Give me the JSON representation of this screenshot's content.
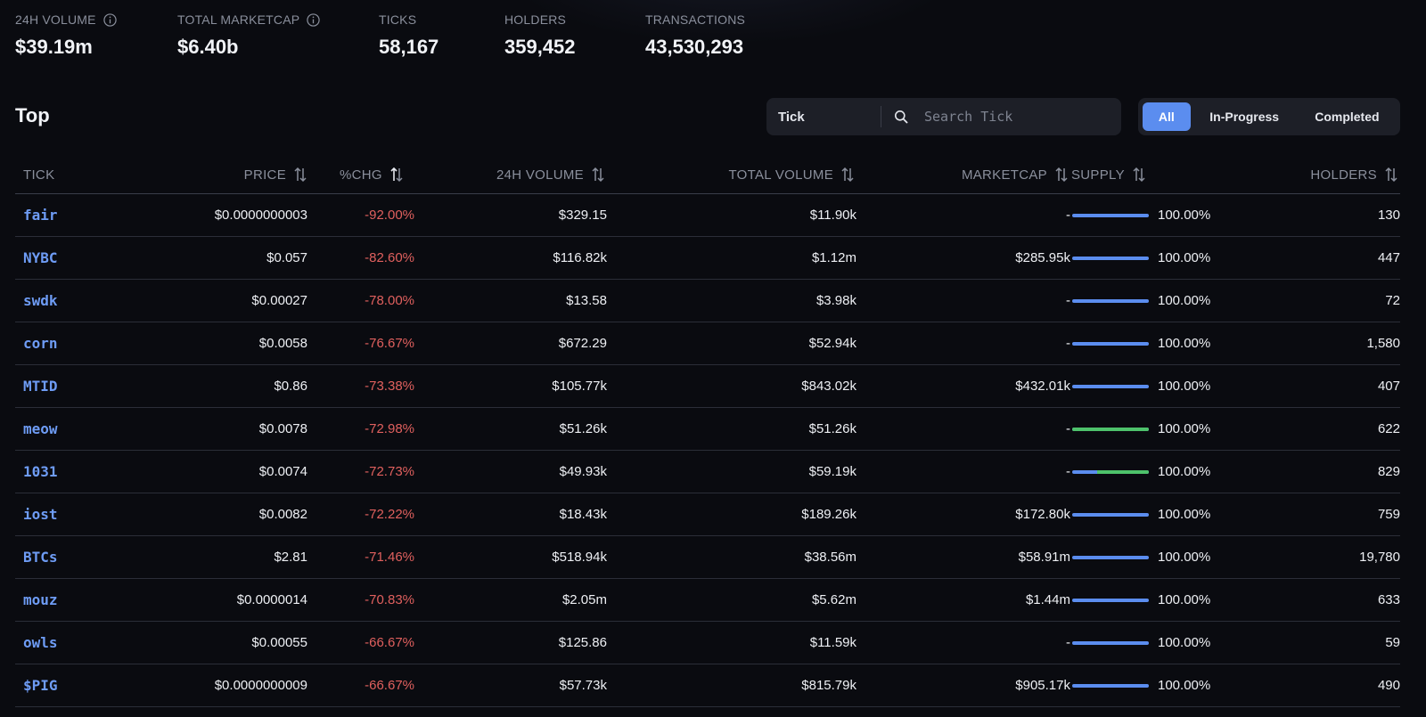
{
  "stats": [
    {
      "label": "24H VOLUME",
      "value": "$39.19m",
      "info": true
    },
    {
      "label": "TOTAL MARKETCAP",
      "value": "$6.40b",
      "info": true
    },
    {
      "label": "TICKS",
      "value": "58,167",
      "info": false
    },
    {
      "label": "HOLDERS",
      "value": "359,452",
      "info": false
    },
    {
      "label": "TRANSACTIONS",
      "value": "43,530,293",
      "info": false
    }
  ],
  "section_title": "Top",
  "search": {
    "kind": "Tick",
    "placeholder": "Search Tick",
    "value": ""
  },
  "filters": [
    "All",
    "In-Progress",
    "Completed"
  ],
  "active_filter": "All",
  "columns": [
    "TICK",
    "PRICE",
    "%CHG",
    "24H VOLUME",
    "TOTAL VOLUME",
    "MARKETCAP",
    "SUPPLY",
    "HOLDERS"
  ],
  "colors": {
    "accent": "#5b8def",
    "tick_link": "#6e9cf5",
    "negative": "#e0605e",
    "supply_green": "#4ec26b"
  },
  "rows": [
    {
      "tick": "fair",
      "price": "$0.0000000003",
      "chg": "-92.00%",
      "vol24": "$329.15",
      "total_vol": "$11.90k",
      "mcap": "-",
      "supply": "100.00%",
      "green_fraction": 0,
      "holders": "130"
    },
    {
      "tick": "NYBC",
      "price": "$0.057",
      "chg": "-82.60%",
      "vol24": "$116.82k",
      "total_vol": "$1.12m",
      "mcap": "$285.95k",
      "supply": "100.00%",
      "green_fraction": 0,
      "holders": "447"
    },
    {
      "tick": "swdk",
      "price": "$0.00027",
      "chg": "-78.00%",
      "vol24": "$13.58",
      "total_vol": "$3.98k",
      "mcap": "-",
      "supply": "100.00%",
      "green_fraction": 0,
      "holders": "72"
    },
    {
      "tick": "corn",
      "price": "$0.0058",
      "chg": "-76.67%",
      "vol24": "$672.29",
      "total_vol": "$52.94k",
      "mcap": "-",
      "supply": "100.00%",
      "green_fraction": 0,
      "holders": "1,580"
    },
    {
      "tick": "MTID",
      "price": "$0.86",
      "chg": "-73.38%",
      "vol24": "$105.77k",
      "total_vol": "$843.02k",
      "mcap": "$432.01k",
      "supply": "100.00%",
      "green_fraction": 0,
      "holders": "407"
    },
    {
      "tick": "meow",
      "price": "$0.0078",
      "chg": "-72.98%",
      "vol24": "$51.26k",
      "total_vol": "$51.26k",
      "mcap": "-",
      "supply": "100.00%",
      "green_fraction": 1,
      "holders": "622"
    },
    {
      "tick": "1031",
      "price": "$0.0074",
      "chg": "-72.73%",
      "vol24": "$49.93k",
      "total_vol": "$59.19k",
      "mcap": "-",
      "supply": "100.00%",
      "green_fraction": 0.68,
      "holders": "829"
    },
    {
      "tick": "iost",
      "price": "$0.0082",
      "chg": "-72.22%",
      "vol24": "$18.43k",
      "total_vol": "$189.26k",
      "mcap": "$172.80k",
      "supply": "100.00%",
      "green_fraction": 0,
      "holders": "759"
    },
    {
      "tick": "BTCs",
      "price": "$2.81",
      "chg": "-71.46%",
      "vol24": "$518.94k",
      "total_vol": "$38.56m",
      "mcap": "$58.91m",
      "supply": "100.00%",
      "green_fraction": 0,
      "holders": "19,780"
    },
    {
      "tick": "mouz",
      "price": "$0.0000014",
      "chg": "-70.83%",
      "vol24": "$2.05m",
      "total_vol": "$5.62m",
      "mcap": "$1.44m",
      "supply": "100.00%",
      "green_fraction": 0,
      "holders": "633"
    },
    {
      "tick": "owls",
      "price": "$0.00055",
      "chg": "-66.67%",
      "vol24": "$125.86",
      "total_vol": "$11.59k",
      "mcap": "-",
      "supply": "100.00%",
      "green_fraction": 0,
      "holders": "59"
    },
    {
      "tick": "$PIG",
      "price": "$0.0000000009",
      "chg": "-66.67%",
      "vol24": "$57.73k",
      "total_vol": "$815.79k",
      "mcap": "$905.17k",
      "supply": "100.00%",
      "green_fraction": 0,
      "holders": "490"
    }
  ]
}
